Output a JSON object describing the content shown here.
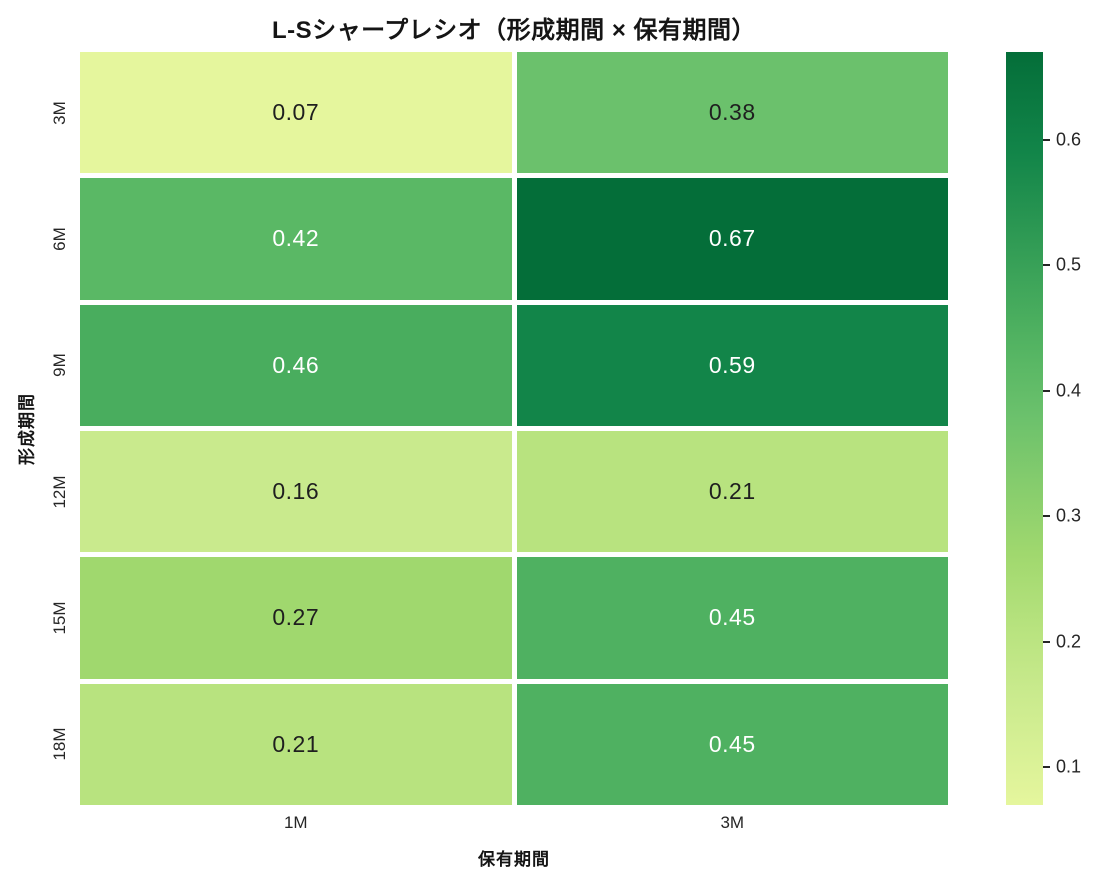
{
  "chart_data": {
    "type": "heatmap",
    "title": "L-Sシャープレシオ（形成期間 × 保有期間）",
    "xlabel": "保有期間",
    "ylabel": "形成期間",
    "x_categories": [
      "1M",
      "3M"
    ],
    "y_categories": [
      "3M",
      "6M",
      "9M",
      "12M",
      "15M",
      "18M"
    ],
    "values": [
      [
        0.07,
        0.38
      ],
      [
        0.42,
        0.67
      ],
      [
        0.46,
        0.59
      ],
      [
        0.16,
        0.21
      ],
      [
        0.27,
        0.45
      ],
      [
        0.21,
        0.45
      ]
    ],
    "cells": [
      [
        {
          "label": "0.07",
          "bg": "#e5f69d",
          "fg": "#1f1f1f"
        },
        {
          "label": "0.38",
          "bg": "#6bc16c",
          "fg": "#1f1f1f"
        }
      ],
      [
        {
          "label": "0.42",
          "bg": "#5ab865",
          "fg": "#ffffff"
        },
        {
          "label": "0.67",
          "bg": "#046e39",
          "fg": "#ffffff"
        }
      ],
      [
        {
          "label": "0.46",
          "bg": "#49ad5e",
          "fg": "#ffffff"
        },
        {
          "label": "0.59",
          "bg": "#128549",
          "fg": "#ffffff"
        }
      ],
      [
        {
          "label": "0.16",
          "bg": "#c9ea8d",
          "fg": "#1f1f1f"
        },
        {
          "label": "0.21",
          "bg": "#b8e37f",
          "fg": "#1f1f1f"
        }
      ],
      [
        {
          "label": "0.27",
          "bg": "#a0d86e",
          "fg": "#1f1f1f"
        },
        {
          "label": "0.45",
          "bg": "#4fb161",
          "fg": "#ffffff"
        }
      ],
      [
        {
          "label": "0.21",
          "bg": "#b8e37f",
          "fg": "#1f1f1f"
        },
        {
          "label": "0.45",
          "bg": "#4fb161",
          "fg": "#ffffff"
        }
      ]
    ],
    "colorbar": {
      "vmin": 0.07,
      "vmax": 0.67,
      "ticks": [
        {
          "label": "0.6",
          "value": 0.6
        },
        {
          "label": "0.5",
          "value": 0.5
        },
        {
          "label": "0.4",
          "value": 0.4
        },
        {
          "label": "0.3",
          "value": 0.3
        },
        {
          "label": "0.2",
          "value": 0.2
        },
        {
          "label": "0.1",
          "value": 0.1
        }
      ],
      "gradient_stops": [
        {
          "value": 0.07,
          "color": "#e5f69d"
        },
        {
          "value": 0.16,
          "color": "#c9ea8d"
        },
        {
          "value": 0.21,
          "color": "#b8e37f"
        },
        {
          "value": 0.27,
          "color": "#a0d86e"
        },
        {
          "value": 0.38,
          "color": "#6bc16c"
        },
        {
          "value": 0.42,
          "color": "#5ab865"
        },
        {
          "value": 0.46,
          "color": "#49ad5e"
        },
        {
          "value": 0.59,
          "color": "#128549"
        },
        {
          "value": 0.67,
          "color": "#046e39"
        }
      ]
    },
    "layout": {
      "grid_gap_color": "#ffffff",
      "background": "#ffffff"
    }
  }
}
